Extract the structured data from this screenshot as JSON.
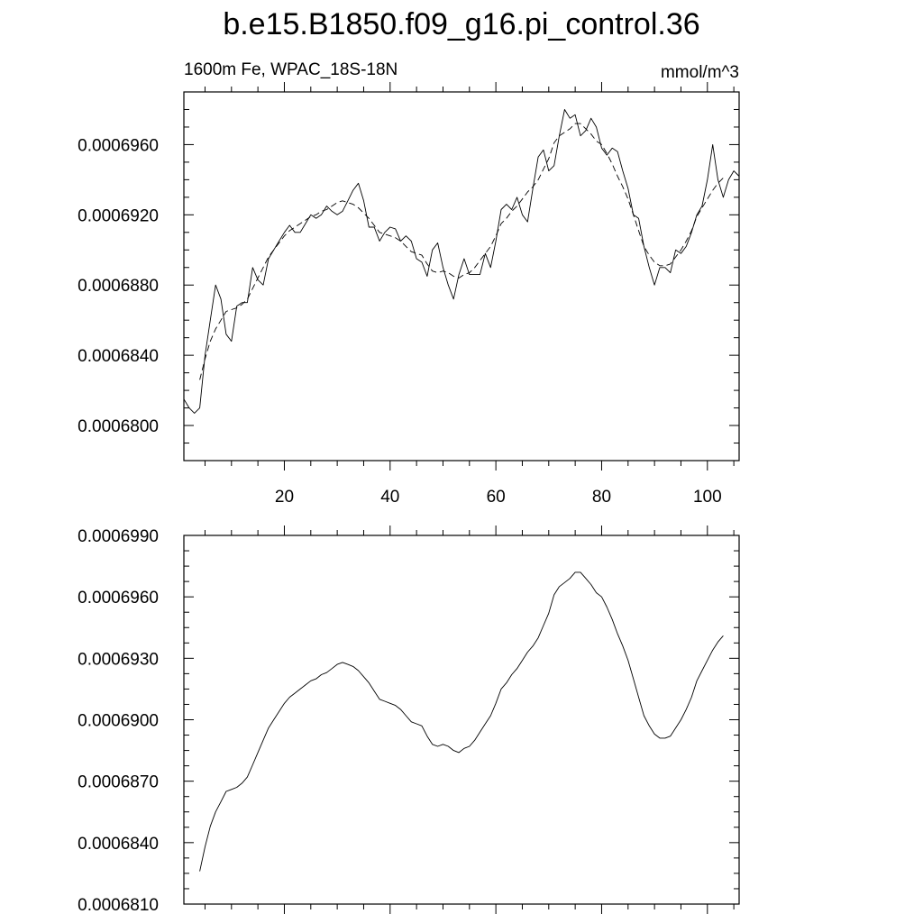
{
  "title": "b.e15.B1850.f09_g16.pi_control.36",
  "chart_data": [
    {
      "type": "line",
      "left_label": "1600m Fe, WPAC_18S-18N",
      "right_label": "mmol/m^3",
      "xlim": [
        1,
        106
      ],
      "ylim": [
        0.000678,
        0.000699
      ],
      "xticks": [
        20,
        40,
        60,
        80,
        100
      ],
      "xtick_labels": [
        "20",
        "40",
        "60",
        "80",
        "100"
      ],
      "yticks": [
        0.00068,
        0.000684,
        0.000688,
        0.000692,
        0.000696
      ],
      "ytick_labels": [
        "0.0006800",
        "0.0006840",
        "0.0006880",
        "0.0006920",
        "0.0006960"
      ],
      "series": [
        {
          "style": "solid",
          "x": [
            1,
            2,
            3,
            4,
            5,
            6,
            7,
            8,
            9,
            10,
            11,
            12,
            13,
            14,
            15,
            16,
            17,
            18,
            19,
            20,
            21,
            22,
            23,
            24,
            25,
            26,
            27,
            28,
            29,
            30,
            31,
            32,
            33,
            34,
            35,
            36,
            37,
            38,
            39,
            40,
            41,
            42,
            43,
            44,
            45,
            46,
            47,
            48,
            49,
            50,
            51,
            52,
            53,
            54,
            55,
            56,
            57,
            58,
            59,
            60,
            61,
            62,
            63,
            64,
            65,
            66,
            67,
            68,
            69,
            70,
            71,
            72,
            73,
            74,
            75,
            76,
            77,
            78,
            79,
            80,
            81,
            82,
            83,
            84,
            85,
            86,
            87,
            88,
            89,
            90,
            91,
            92,
            93,
            94,
            95,
            96,
            97,
            98,
            99,
            100,
            101,
            102,
            103,
            104,
            105,
            106
          ],
          "y": [
            0.0006815,
            0.000681,
            0.0006807,
            0.000681,
            0.000684,
            0.000686,
            0.000688,
            0.0006872,
            0.0006852,
            0.0006848,
            0.0006868,
            0.000687,
            0.000687,
            0.000689,
            0.0006883,
            0.000688,
            0.0006895,
            0.00069,
            0.0006905,
            0.000691,
            0.0006914,
            0.000691,
            0.000691,
            0.0006915,
            0.000692,
            0.0006918,
            0.000692,
            0.0006925,
            0.0006922,
            0.000692,
            0.0006922,
            0.0006928,
            0.0006934,
            0.0006938,
            0.0006928,
            0.0006913,
            0.0006913,
            0.0006905,
            0.000691,
            0.0006913,
            0.0006912,
            0.0006905,
            0.0006908,
            0.0006905,
            0.0006895,
            0.0006893,
            0.0006885,
            0.00069,
            0.0006904,
            0.000689,
            0.000688,
            0.0006872,
            0.0006886,
            0.0006895,
            0.0006886,
            0.0006886,
            0.0006886,
            0.0006898,
            0.000689,
            0.0006905,
            0.0006923,
            0.0006926,
            0.0006923,
            0.000693,
            0.000692,
            0.0006916,
            0.0006935,
            0.0006953,
            0.0006957,
            0.0006945,
            0.0006948,
            0.0006965,
            0.000698,
            0.0006975,
            0.0006977,
            0.0006965,
            0.0006968,
            0.0006975,
            0.000697,
            0.0006958,
            0.0006954,
            0.0006958,
            0.0006956,
            0.0006945,
            0.0006935,
            0.000692,
            0.0006918,
            0.0006902,
            0.000689,
            0.000688,
            0.000689,
            0.000689,
            0.0006887,
            0.00069,
            0.0006898,
            0.0006902,
            0.000691,
            0.000692,
            0.0006925,
            0.000694,
            0.000696,
            0.000694,
            0.000693,
            0.000694,
            0.0006945,
            0.0006942
          ]
        },
        {
          "style": "dashed",
          "x": [
            4,
            5,
            6,
            7,
            8,
            9,
            10,
            11,
            12,
            13,
            14,
            15,
            16,
            17,
            18,
            19,
            20,
            21,
            22,
            23,
            24,
            25,
            26,
            27,
            28,
            29,
            30,
            31,
            32,
            33,
            34,
            35,
            36,
            37,
            38,
            39,
            40,
            41,
            42,
            43,
            44,
            45,
            46,
            47,
            48,
            49,
            50,
            51,
            52,
            53,
            54,
            55,
            56,
            57,
            58,
            59,
            60,
            61,
            62,
            63,
            64,
            65,
            66,
            67,
            68,
            69,
            70,
            71,
            72,
            73,
            74,
            75,
            76,
            77,
            78,
            79,
            80,
            81,
            82,
            83,
            84,
            85,
            86,
            87,
            88,
            89,
            90,
            91,
            92,
            93,
            94,
            95,
            96,
            97,
            98,
            99,
            100,
            101,
            102,
            103
          ],
          "y": [
            0.0006826,
            0.0006838,
            0.0006848,
            0.0006855,
            0.000686,
            0.0006865,
            0.0006866,
            0.0006867,
            0.0006869,
            0.0006872,
            0.0006878,
            0.0006884,
            0.000689,
            0.0006896,
            0.00069,
            0.0006904,
            0.0006908,
            0.0006911,
            0.0006913,
            0.0006915,
            0.0006917,
            0.0006919,
            0.000692,
            0.0006922,
            0.0006923,
            0.0006925,
            0.0006927,
            0.0006928,
            0.0006927,
            0.0006926,
            0.0006924,
            0.0006921,
            0.0006918,
            0.0006914,
            0.000691,
            0.0006909,
            0.0006908,
            0.0006907,
            0.0006905,
            0.0006902,
            0.0006899,
            0.0006898,
            0.0006897,
            0.0006892,
            0.0006888,
            0.0006887,
            0.0006888,
            0.0006887,
            0.0006885,
            0.0006884,
            0.0006886,
            0.0006887,
            0.000689,
            0.0006894,
            0.0006898,
            0.0006902,
            0.0006908,
            0.0006915,
            0.0006918,
            0.0006922,
            0.0006925,
            0.0006929,
            0.0006933,
            0.0006936,
            0.000694,
            0.0006946,
            0.0006952,
            0.0006961,
            0.0006965,
            0.0006967,
            0.0006969,
            0.0006972,
            0.0006972,
            0.0006969,
            0.0006966,
            0.0006962,
            0.000696,
            0.0006955,
            0.0006949,
            0.0006942,
            0.0006936,
            0.0006929,
            0.000692,
            0.0006911,
            0.0006902,
            0.0006897,
            0.0006893,
            0.0006891,
            0.0006891,
            0.0006892,
            0.0006896,
            0.00069,
            0.0006905,
            0.0006911,
            0.0006919,
            0.0006924,
            0.0006929,
            0.0006934,
            0.0006938,
            0.0006941
          ]
        }
      ]
    },
    {
      "type": "line",
      "xlim": [
        1,
        106
      ],
      "ylim": [
        0.000681,
        0.000699
      ],
      "xticks": [
        20,
        40,
        60,
        80,
        100
      ],
      "xtick_labels": [],
      "yticks": [
        0.000681,
        0.000684,
        0.000687,
        0.00069,
        0.000693,
        0.000696,
        0.000699
      ],
      "ytick_labels": [
        "0.0006810",
        "0.0006840",
        "0.0006870",
        "0.0006900",
        "0.0006930",
        "0.0006960",
        "0.0006990"
      ],
      "series": [
        {
          "style": "solid",
          "x": [
            4,
            5,
            6,
            7,
            8,
            9,
            10,
            11,
            12,
            13,
            14,
            15,
            16,
            17,
            18,
            19,
            20,
            21,
            22,
            23,
            24,
            25,
            26,
            27,
            28,
            29,
            30,
            31,
            32,
            33,
            34,
            35,
            36,
            37,
            38,
            39,
            40,
            41,
            42,
            43,
            44,
            45,
            46,
            47,
            48,
            49,
            50,
            51,
            52,
            53,
            54,
            55,
            56,
            57,
            58,
            59,
            60,
            61,
            62,
            63,
            64,
            65,
            66,
            67,
            68,
            69,
            70,
            71,
            72,
            73,
            74,
            75,
            76,
            77,
            78,
            79,
            80,
            81,
            82,
            83,
            84,
            85,
            86,
            87,
            88,
            89,
            90,
            91,
            92,
            93,
            94,
            95,
            96,
            97,
            98,
            99,
            100,
            101,
            102,
            103
          ],
          "y": [
            0.0006826,
            0.0006838,
            0.0006848,
            0.0006855,
            0.000686,
            0.0006865,
            0.0006866,
            0.0006867,
            0.0006869,
            0.0006872,
            0.0006878,
            0.0006884,
            0.000689,
            0.0006896,
            0.00069,
            0.0006904,
            0.0006908,
            0.0006911,
            0.0006913,
            0.0006915,
            0.0006917,
            0.0006919,
            0.000692,
            0.0006922,
            0.0006923,
            0.0006925,
            0.0006927,
            0.0006928,
            0.0006927,
            0.0006926,
            0.0006924,
            0.0006921,
            0.0006918,
            0.0006914,
            0.000691,
            0.0006909,
            0.0006908,
            0.0006907,
            0.0006905,
            0.0006902,
            0.0006899,
            0.0006898,
            0.0006897,
            0.0006892,
            0.0006888,
            0.0006887,
            0.0006888,
            0.0006887,
            0.0006885,
            0.0006884,
            0.0006886,
            0.0006887,
            0.000689,
            0.0006894,
            0.0006898,
            0.0006902,
            0.0006908,
            0.0006915,
            0.0006918,
            0.0006922,
            0.0006925,
            0.0006929,
            0.0006933,
            0.0006936,
            0.000694,
            0.0006946,
            0.0006952,
            0.0006961,
            0.0006965,
            0.0006967,
            0.0006969,
            0.0006972,
            0.0006972,
            0.0006969,
            0.0006966,
            0.0006962,
            0.000696,
            0.0006955,
            0.0006949,
            0.0006942,
            0.0006936,
            0.0006929,
            0.000692,
            0.0006911,
            0.0006902,
            0.0006897,
            0.0006893,
            0.0006891,
            0.0006891,
            0.0006892,
            0.0006896,
            0.00069,
            0.0006905,
            0.0006911,
            0.0006919,
            0.0006924,
            0.0006929,
            0.0006934,
            0.0006938,
            0.0006941
          ]
        }
      ]
    }
  ]
}
